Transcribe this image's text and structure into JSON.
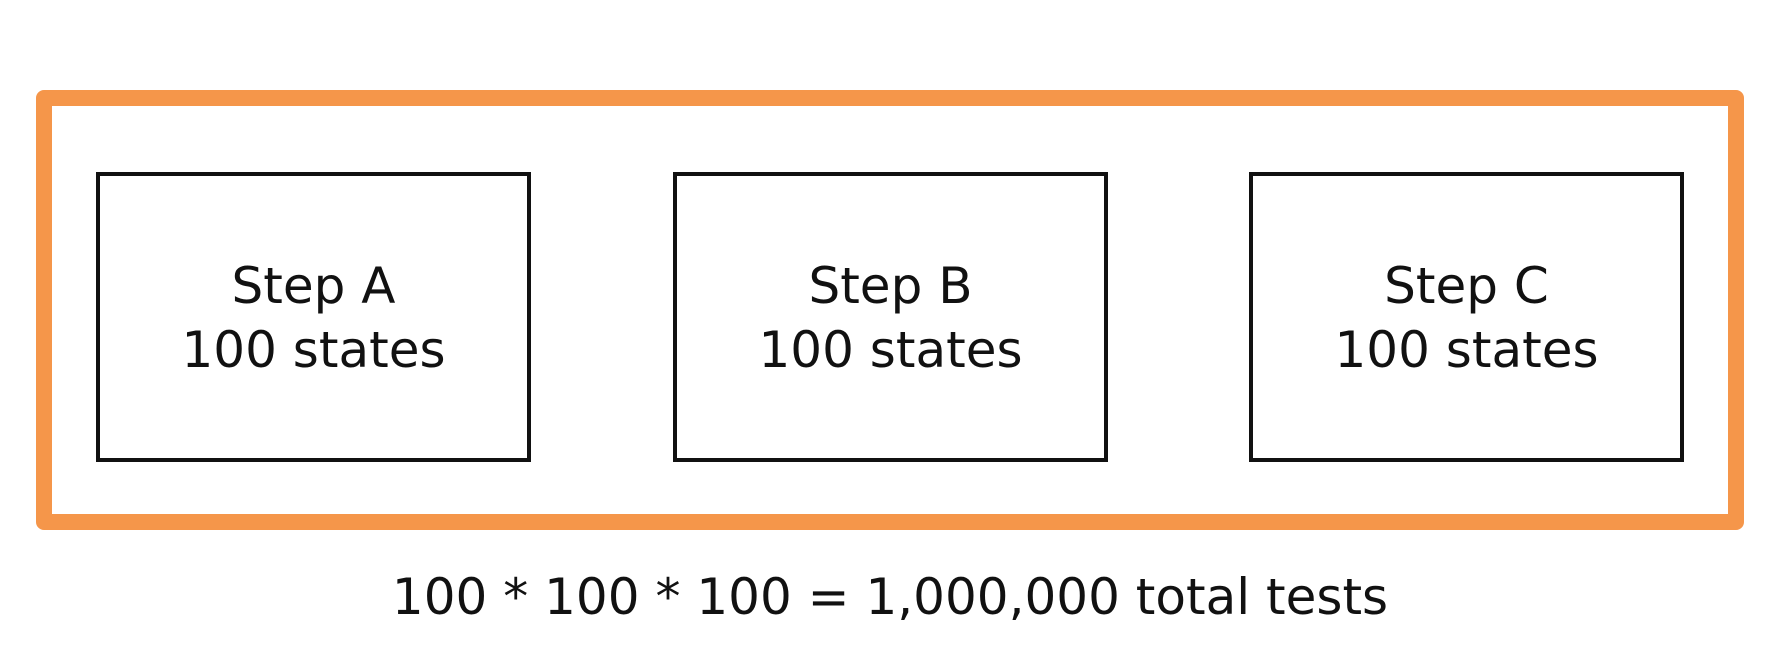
{
  "diagram": {
    "colors": {
      "frame": "#f5964a",
      "box_border": "#111111",
      "text": "#111111",
      "background": "#ffffff"
    },
    "steps": [
      {
        "title": "Step A",
        "states": "100 states"
      },
      {
        "title": "Step B",
        "states": "100 states"
      },
      {
        "title": "Step C",
        "states": "100 states"
      }
    ],
    "equation": "100 * 100 * 100 = 1,000,000 total tests"
  }
}
